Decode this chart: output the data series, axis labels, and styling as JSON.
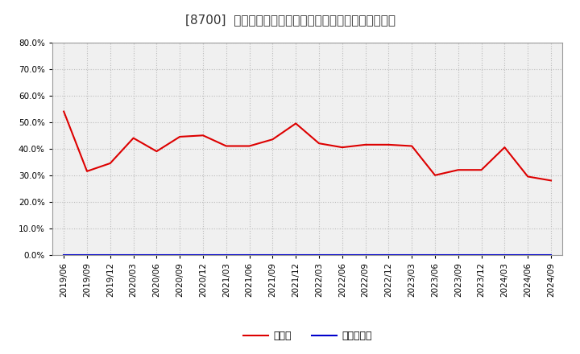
{
  "title": "[8700]  現頲金、有利子負債の総資産に対する比率の推移",
  "cash_dates": [
    "2019/06",
    "2019/09",
    "2019/12",
    "2020/03",
    "2020/06",
    "2020/09",
    "2020/12",
    "2021/03",
    "2021/06",
    "2021/09",
    "2021/12",
    "2022/03",
    "2022/06",
    "2022/09",
    "2022/12",
    "2023/03",
    "2023/06",
    "2023/09",
    "2023/12",
    "2024/03",
    "2024/06",
    "2024/09"
  ],
  "cash_values": [
    54.0,
    31.5,
    34.5,
    44.0,
    39.0,
    44.5,
    45.0,
    41.0,
    41.0,
    43.5,
    49.5,
    42.0,
    40.5,
    41.5,
    41.5,
    41.0,
    30.0,
    32.0,
    32.0,
    40.5,
    29.5,
    28.0
  ],
  "debt_values": [
    0.0,
    0.0,
    0.0,
    0.0,
    0.0,
    0.0,
    0.0,
    0.0,
    0.0,
    0.0,
    0.0,
    0.0,
    0.0,
    0.0,
    0.0,
    0.0,
    0.0,
    0.0,
    0.0,
    0.0,
    0.0,
    0.0
  ],
  "cash_color": "#dd0000",
  "debt_color": "#0000cc",
  "legend_cash": "現頲金",
  "legend_debt": "有利子負債",
  "ylim": [
    0,
    80
  ],
  "yticks": [
    0,
    10,
    20,
    30,
    40,
    50,
    60,
    70,
    80
  ],
  "bg_color": "#ffffff",
  "plot_bg_color": "#f0f0f0",
  "grid_color": "#bbbbbb",
  "title_fontsize": 11,
  "axis_fontsize": 7.5,
  "legend_fontsize": 9
}
